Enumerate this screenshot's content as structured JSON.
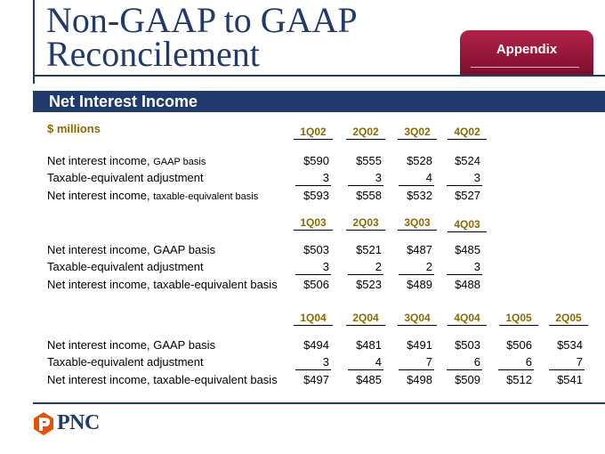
{
  "header": {
    "title_line1": "Non-GAAP to GAAP",
    "title_line2": "Reconcilement",
    "tab_label": "Appendix"
  },
  "section": {
    "title": "Net Interest Income",
    "units": "$ millions"
  },
  "blocks": [
    {
      "periods": [
        "1Q02",
        "2Q02",
        "3Q02",
        "4Q02"
      ],
      "rows": [
        {
          "label_main": "Net interest income, ",
          "label_small": "GAAP basis",
          "values": [
            "$590",
            "$555",
            "$528",
            "$524"
          ]
        },
        {
          "label_main": "Taxable-equivalent adjustment",
          "label_small": "",
          "values": [
            "3",
            "3",
            "4",
            "3"
          ]
        },
        {
          "label_main": "Net interest income, ",
          "label_small": "taxable-equivalent basis",
          "values": [
            "$593",
            "$558",
            "$532",
            "$527"
          ]
        }
      ]
    },
    {
      "periods": [
        "1Q03",
        "2Q03",
        "3Q03",
        "4Q03"
      ],
      "rows": [
        {
          "label_main": "Net interest income, GAAP basis",
          "label_small": "",
          "values": [
            "$503",
            "$521",
            "$487",
            "$485"
          ]
        },
        {
          "label_main": "Taxable-equivalent adjustment",
          "label_small": "",
          "values": [
            "3",
            "2",
            "2",
            "3"
          ]
        },
        {
          "label_main": "Net interest income, taxable-equivalent basis",
          "label_small": "",
          "values": [
            "$506",
            "$523",
            "$489",
            "$488"
          ]
        }
      ]
    },
    {
      "periods": [
        "1Q04",
        "2Q04",
        "3Q04",
        "4Q04",
        "1Q05",
        "2Q05"
      ],
      "rows": [
        {
          "label_main": "Net interest income, GAAP basis",
          "label_small": "",
          "values": [
            "$494",
            "$481",
            "$491",
            "$503",
            "$506",
            "$534"
          ]
        },
        {
          "label_main": "Taxable-equivalent adjustment",
          "label_small": "",
          "values": [
            "3",
            "4",
            "7",
            "6",
            "6",
            "7"
          ]
        },
        {
          "label_main": "Net interest income, taxable-equivalent basis",
          "label_small": "",
          "values": [
            "$497",
            "$485",
            "$498",
            "$509",
            "$512",
            "$541"
          ]
        }
      ]
    }
  ],
  "footer": {
    "logo_text": "PNC",
    "logo_accent": "#e35205"
  }
}
